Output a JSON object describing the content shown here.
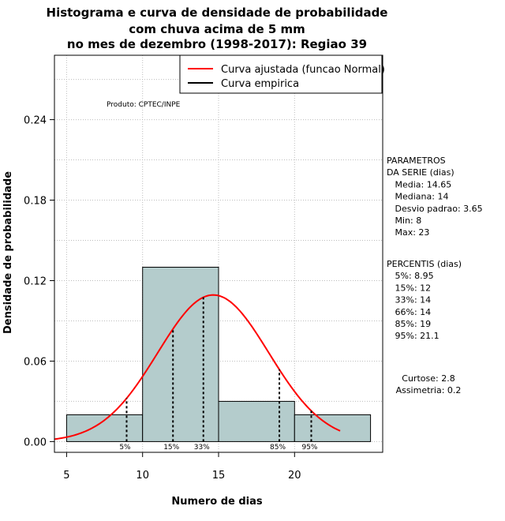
{
  "chart_data": {
    "type": "bar",
    "title": [
      "Histograma e curva de densidade de probabilidade",
      "com chuva acima de 5 mm",
      "no mes de dezembro (1998-2017): Regiao 39"
    ],
    "xlabel": "Numero de dias",
    "ylabel": "Densidade de probabilidade",
    "xlim": [
      4.2,
      25.8
    ],
    "ylim": [
      -0.008,
      0.288
    ],
    "x_ticks": [
      5,
      10,
      15,
      20
    ],
    "x_tick_labels": [
      "5",
      "10",
      "15",
      "20"
    ],
    "y_ticks": [
      0.0,
      0.06,
      0.12,
      0.18,
      0.24
    ],
    "y_tick_labels": [
      "0.00",
      "0.06",
      "0.12",
      "0.18",
      "0.24"
    ],
    "grid": true,
    "bins": [
      {
        "x0": 5,
        "x1": 10,
        "density": 0.02
      },
      {
        "x0": 10,
        "x1": 15,
        "density": 0.13
      },
      {
        "x0": 15,
        "x1": 20,
        "density": 0.03
      },
      {
        "x0": 20,
        "x1": 25,
        "density": 0.02
      }
    ],
    "bar_color": "#b4cccc",
    "curve_color": "#ff0000",
    "normal_curve": {
      "mean": 14.65,
      "sd": 3.65,
      "x_from": 4.2,
      "x_to": 23
    },
    "percentile_lines": [
      {
        "label": "5%",
        "x": 8.95
      },
      {
        "label": "15%",
        "x": 12
      },
      {
        "label": "33%",
        "x": 14
      },
      {
        "label": "85%",
        "x": 19
      },
      {
        "label": "95%",
        "x": 21.1
      }
    ],
    "legend": {
      "position": "top-right",
      "entries": [
        {
          "label": "Curva ajustada (funcao Normal)",
          "color": "#ff0000"
        },
        {
          "label": "Curva empirica",
          "color": "#000000"
        }
      ]
    },
    "product_label": "Produto: CPTEC/INPE",
    "parameters_block": [
      "PARAMETROS",
      "DA SERIE (dias)",
      "   Media: 14.65",
      "   Mediana: 14",
      "   Desvio padrao: 3.65",
      "   Min: 8",
      "   Max: 23"
    ],
    "percentis_block": [
      "PERCENTIS (dias)",
      "   5%: 8.95",
      "   15%: 12",
      "   33%: 14",
      "   66%: 14",
      "   85%: 19",
      "   95%: 21.1"
    ],
    "shape_block": [
      "Curtose: 2.8",
      "Assimetria: 0.2"
    ]
  }
}
